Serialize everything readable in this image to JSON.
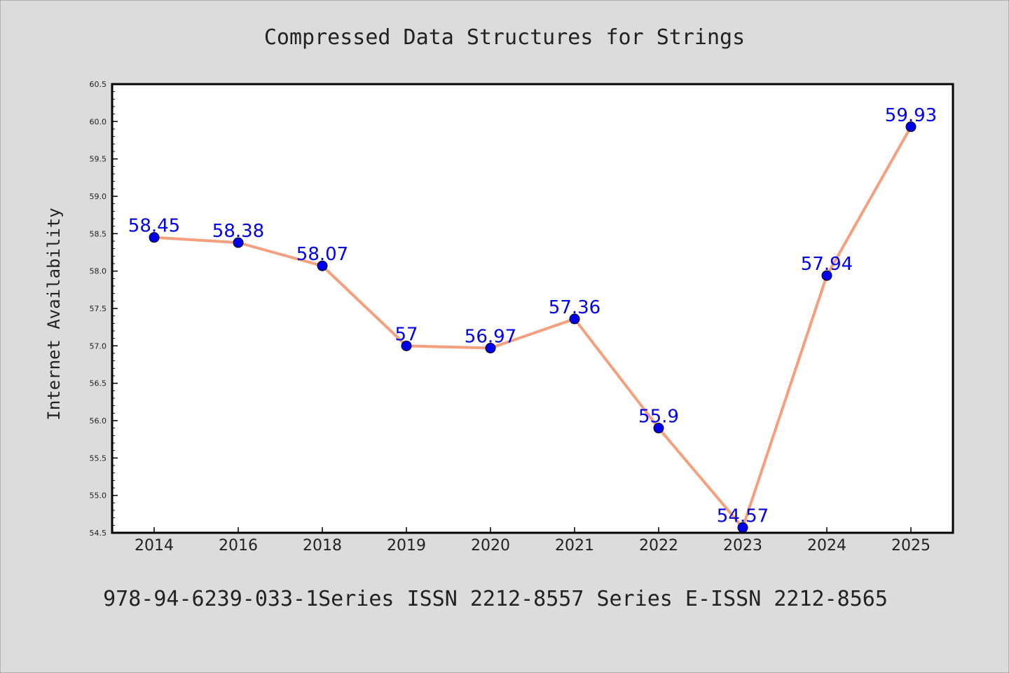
{
  "chart_data": {
    "type": "line",
    "title": "Compressed Data Structures for Strings",
    "ylabel": "Internet Availability",
    "xlabel": "",
    "footer": "978-94-6239-033-1Series ISSN 2212-8557 Series E-ISSN 2212-8565",
    "categories": [
      "2014",
      "2016",
      "2018",
      "2019",
      "2020",
      "2021",
      "2022",
      "2023",
      "2024",
      "2025"
    ],
    "values": [
      58.45,
      58.38,
      58.07,
      57,
      56.97,
      57.36,
      55.9,
      54.57,
      57.94,
      59.93
    ],
    "data_labels": [
      "58.45",
      "58.38",
      "58.07",
      "57",
      "56.97",
      "57.36",
      "55.9",
      "54.57",
      "57.94",
      "59.93"
    ],
    "ylim": [
      54.5,
      60.5
    ],
    "yticks": [
      54.5,
      55.0,
      55.5,
      56.0,
      56.5,
      57.0,
      57.5,
      58.0,
      58.5,
      59.0,
      59.5,
      60.0,
      60.5
    ],
    "ytick_labels": [
      "54.5",
      "55.0",
      "55.5",
      "56.0",
      "56.5",
      "57.0",
      "57.5",
      "58.0",
      "58.5",
      "59.0",
      "59.5",
      "60.0",
      "60.5"
    ],
    "grid": false,
    "legend": "none",
    "colors": {
      "background": "#dcdcdc",
      "plot_background": "#ffffff",
      "line": "#f4a07e",
      "marker": "#0000ee",
      "data_label": "#0000ee",
      "text": "#222222"
    }
  }
}
